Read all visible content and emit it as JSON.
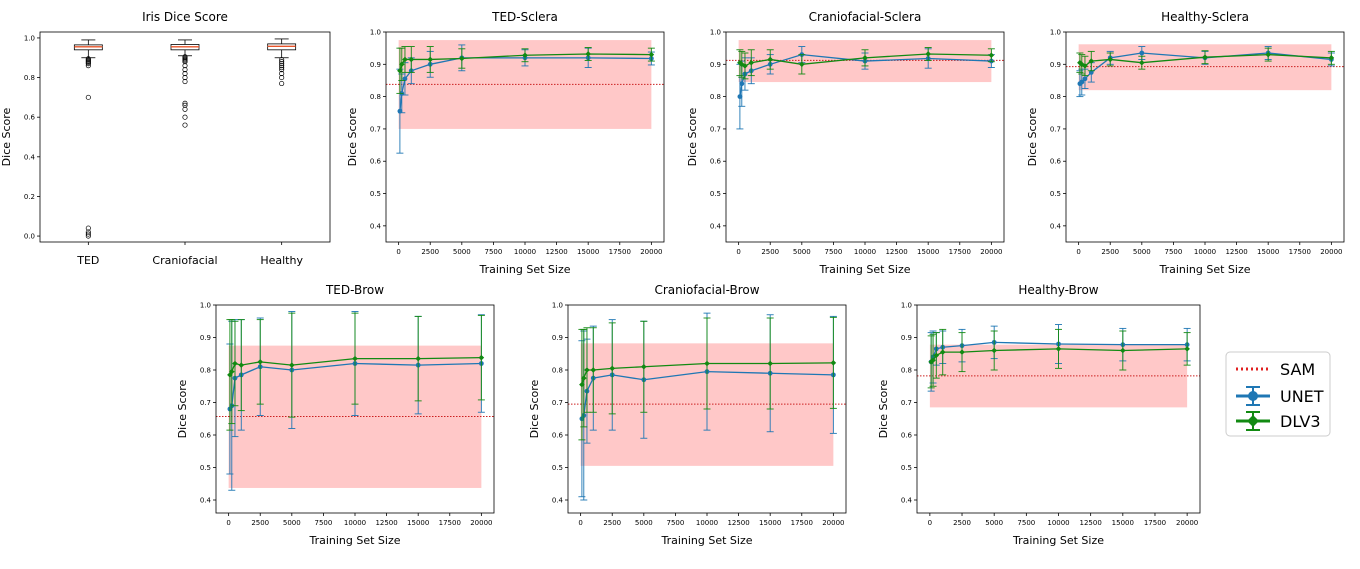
{
  "colors": {
    "unet": "#1f77b4",
    "dlv3": "#128a12",
    "sam": "#cc2020",
    "band": "#ff9a9a"
  },
  "legend": {
    "sam": "SAM",
    "unet": "UNET",
    "dlv3": "DLV3"
  },
  "chart_data": [
    {
      "id": "iris",
      "type": "box",
      "title": "Iris Dice Score",
      "ylabel": "Dice Score",
      "xlabel": "",
      "ylim": [
        -0.03,
        1.03
      ],
      "yticks": [
        "0.0",
        "0.2",
        "0.4",
        "0.6",
        "0.8",
        "1.0"
      ],
      "ytick_values": [
        0.0,
        0.2,
        0.4,
        0.6,
        0.8,
        1.0
      ],
      "categories": [
        "TED",
        "Craniofacial",
        "Healthy"
      ],
      "boxes": [
        {
          "q1": 0.94,
          "median": 0.955,
          "q3": 0.965,
          "whislo": 0.9,
          "whishi": 0.99,
          "fliers": [
            0.895,
            0.89,
            0.885,
            0.88,
            0.875,
            0.87,
            0.86,
            0.7,
            0.04,
            0.02,
            0.01,
            0.0
          ]
        },
        {
          "q1": 0.94,
          "median": 0.955,
          "q3": 0.967,
          "whislo": 0.91,
          "whishi": 0.99,
          "fliers": [
            0.905,
            0.9,
            0.895,
            0.89,
            0.885,
            0.88,
            0.86,
            0.84,
            0.82,
            0.8,
            0.78,
            0.67,
            0.66,
            0.64,
            0.6,
            0.56
          ]
        },
        {
          "q1": 0.94,
          "median": 0.958,
          "q3": 0.97,
          "whislo": 0.9,
          "whishi": 0.995,
          "fliers": [
            0.89,
            0.88,
            0.87,
            0.86,
            0.85,
            0.84,
            0.82,
            0.8,
            0.77
          ]
        }
      ]
    },
    {
      "id": "ted-sclera",
      "type": "line",
      "title": "TED-Sclera",
      "ylabel": "Dice Score",
      "xlabel": "Training Set Size",
      "ylim": [
        0.35,
        1.0
      ],
      "yticks": [
        "0.4",
        "0.5",
        "0.6",
        "0.7",
        "0.8",
        "0.9",
        "1.0"
      ],
      "ytick_values": [
        0.4,
        0.5,
        0.6,
        0.7,
        0.8,
        0.9,
        1.0
      ],
      "xlim": [
        -1000,
        21000
      ],
      "xticks": [
        "0",
        "2500",
        "5000",
        "7500",
        "10000",
        "12500",
        "15000",
        "17500",
        "20000"
      ],
      "xtick_values": [
        0,
        2500,
        5000,
        7500,
        10000,
        12500,
        15000,
        17500,
        20000
      ],
      "x": [
        100,
        250,
        500,
        1000,
        2500,
        5000,
        10000,
        15000,
        20000
      ],
      "sam": {
        "mean": 0.838,
        "band_low": 0.7,
        "band_high": 0.975,
        "band_xmin": 0,
        "band_xmax": 20000
      },
      "series": [
        {
          "name": "UNET",
          "values": [
            0.755,
            0.81,
            0.855,
            0.88,
            0.9,
            0.92,
            0.92,
            0.92,
            0.918
          ],
          "err": [
            0.13,
            0.06,
            0.05,
            0.04,
            0.04,
            0.04,
            0.025,
            0.03,
            0.02
          ]
        },
        {
          "name": "DLV3",
          "values": [
            0.88,
            0.9,
            0.915,
            0.915,
            0.915,
            0.918,
            0.928,
            0.932,
            0.93
          ],
          "err": [
            0.07,
            0.05,
            0.04,
            0.04,
            0.04,
            0.03,
            0.02,
            0.02,
            0.02
          ]
        }
      ]
    },
    {
      "id": "cranio-sclera",
      "type": "line",
      "title": "Craniofacial-Sclera",
      "ylabel": "Dice Score",
      "xlabel": "Training Set Size",
      "ylim": [
        0.35,
        1.0
      ],
      "yticks": [
        "0.4",
        "0.5",
        "0.6",
        "0.7",
        "0.8",
        "0.9",
        "1.0"
      ],
      "ytick_values": [
        0.4,
        0.5,
        0.6,
        0.7,
        0.8,
        0.9,
        1.0
      ],
      "xlim": [
        -1000,
        21000
      ],
      "xticks": [
        "0",
        "2500",
        "5000",
        "7500",
        "10000",
        "12500",
        "15000",
        "17500",
        "20000"
      ],
      "xtick_values": [
        0,
        2500,
        5000,
        7500,
        10000,
        12500,
        15000,
        17500,
        20000
      ],
      "x": [
        100,
        250,
        500,
        1000,
        2500,
        5000,
        10000,
        15000,
        20000
      ],
      "sam": {
        "mean": 0.912,
        "band_low": 0.845,
        "band_high": 0.975,
        "band_xmin": 0,
        "band_xmax": 20000
      },
      "series": [
        {
          "name": "UNET",
          "values": [
            0.8,
            0.84,
            0.87,
            0.88,
            0.9,
            0.93,
            0.91,
            0.918,
            0.91
          ],
          "err": [
            0.1,
            0.07,
            0.05,
            0.04,
            0.03,
            0.025,
            0.025,
            0.03,
            0.02
          ]
        },
        {
          "name": "DLV3",
          "values": [
            0.905,
            0.9,
            0.895,
            0.905,
            0.915,
            0.9,
            0.92,
            0.932,
            0.928
          ],
          "err": [
            0.04,
            0.04,
            0.04,
            0.04,
            0.03,
            0.03,
            0.025,
            0.02,
            0.02
          ]
        }
      ]
    },
    {
      "id": "healthy-sclera",
      "type": "line",
      "title": "Healthy-Sclera",
      "ylabel": "Dice Score",
      "xlabel": "Training Set Size",
      "ylim": [
        0.35,
        1.0
      ],
      "yticks": [
        "0.4",
        "0.5",
        "0.6",
        "0.7",
        "0.8",
        "0.9",
        "1.0"
      ],
      "ytick_values": [
        0.4,
        0.5,
        0.6,
        0.7,
        0.8,
        0.9,
        1.0
      ],
      "xlim": [
        -1000,
        21000
      ],
      "xticks": [
        "0",
        "2500",
        "5000",
        "7500",
        "10000",
        "12500",
        "15000",
        "17500",
        "20000"
      ],
      "xtick_values": [
        0,
        2500,
        5000,
        7500,
        10000,
        12500,
        15000,
        17500,
        20000
      ],
      "x": [
        100,
        250,
        500,
        1000,
        2500,
        5000,
        10000,
        15000,
        20000
      ],
      "sam": {
        "mean": 0.893,
        "band_low": 0.82,
        "band_high": 0.962,
        "band_xmin": 0,
        "band_xmax": 20000
      },
      "series": [
        {
          "name": "UNET",
          "values": [
            0.84,
            0.845,
            0.855,
            0.875,
            0.92,
            0.935,
            0.92,
            0.935,
            0.915
          ],
          "err": [
            0.04,
            0.04,
            0.03,
            0.03,
            0.02,
            0.02,
            0.02,
            0.02,
            0.02
          ]
        },
        {
          "name": "DLV3",
          "values": [
            0.905,
            0.9,
            0.895,
            0.91,
            0.915,
            0.905,
            0.922,
            0.93,
            0.92
          ],
          "err": [
            0.03,
            0.03,
            0.03,
            0.03,
            0.02,
            0.02,
            0.02,
            0.02,
            0.02
          ]
        }
      ]
    },
    {
      "id": "ted-brow",
      "type": "line",
      "title": "TED-Brow",
      "ylabel": "Dice Score",
      "xlabel": "Training Set Size",
      "ylim": [
        0.36,
        1.0
      ],
      "yticks": [
        "0.4",
        "0.5",
        "0.6",
        "0.7",
        "0.8",
        "0.9",
        "1.0"
      ],
      "ytick_values": [
        0.4,
        0.5,
        0.6,
        0.7,
        0.8,
        0.9,
        1.0
      ],
      "xlim": [
        -1000,
        21000
      ],
      "xticks": [
        "0",
        "2500",
        "5000",
        "7500",
        "10000",
        "12500",
        "15000",
        "17500",
        "20000"
      ],
      "xtick_values": [
        0,
        2500,
        5000,
        7500,
        10000,
        12500,
        15000,
        17500,
        20000
      ],
      "x": [
        100,
        250,
        500,
        1000,
        2500,
        5000,
        10000,
        15000,
        20000
      ],
      "sam": {
        "mean": 0.657,
        "band_low": 0.437,
        "band_high": 0.875,
        "band_xmin": 0,
        "band_xmax": 20000
      },
      "series": [
        {
          "name": "UNET",
          "values": [
            0.68,
            0.69,
            0.775,
            0.785,
            0.81,
            0.8,
            0.82,
            0.815,
            0.82
          ],
          "err": [
            0.2,
            0.26,
            0.18,
            0.17,
            0.15,
            0.18,
            0.16,
            0.15,
            0.15
          ]
        },
        {
          "name": "DLV3",
          "values": [
            0.785,
            0.795,
            0.82,
            0.815,
            0.825,
            0.815,
            0.835,
            0.835,
            0.838
          ],
          "err": [
            0.17,
            0.16,
            0.13,
            0.14,
            0.13,
            0.16,
            0.14,
            0.13,
            0.13
          ]
        }
      ]
    },
    {
      "id": "cranio-brow",
      "type": "line",
      "title": "Craniofacial-Brow",
      "ylabel": "Dice Score",
      "xlabel": "Training Set Size",
      "ylim": [
        0.36,
        1.0
      ],
      "yticks": [
        "0.4",
        "0.5",
        "0.6",
        "0.7",
        "0.8",
        "0.9",
        "1.0"
      ],
      "ytick_values": [
        0.4,
        0.5,
        0.6,
        0.7,
        0.8,
        0.9,
        1.0
      ],
      "xlim": [
        -1000,
        21000
      ],
      "xticks": [
        "0",
        "2500",
        "5000",
        "7500",
        "10000",
        "12500",
        "15000",
        "17500",
        "20000"
      ],
      "xtick_values": [
        0,
        2500,
        5000,
        7500,
        10000,
        12500,
        15000,
        17500,
        20000
      ],
      "x": [
        100,
        250,
        500,
        1000,
        2500,
        5000,
        10000,
        15000,
        20000
      ],
      "sam": {
        "mean": 0.695,
        "band_low": 0.505,
        "band_high": 0.882,
        "band_xmin": 0,
        "band_xmax": 20000
      },
      "series": [
        {
          "name": "UNET",
          "values": [
            0.65,
            0.66,
            0.735,
            0.775,
            0.785,
            0.77,
            0.795,
            0.79,
            0.785
          ],
          "err": [
            0.24,
            0.26,
            0.16,
            0.16,
            0.17,
            0.18,
            0.18,
            0.18,
            0.18
          ]
        },
        {
          "name": "DLV3",
          "values": [
            0.755,
            0.775,
            0.8,
            0.8,
            0.805,
            0.81,
            0.82,
            0.82,
            0.822
          ],
          "err": [
            0.17,
            0.15,
            0.13,
            0.13,
            0.14,
            0.14,
            0.14,
            0.14,
            0.14
          ]
        }
      ]
    },
    {
      "id": "healthy-brow",
      "type": "line",
      "title": "Healthy-Brow",
      "ylabel": "Dice Score",
      "xlabel": "Training Set Size",
      "ylim": [
        0.36,
        1.0
      ],
      "yticks": [
        "0.4",
        "0.5",
        "0.6",
        "0.7",
        "0.8",
        "0.9",
        "1.0"
      ],
      "ytick_values": [
        0.4,
        0.5,
        0.6,
        0.7,
        0.8,
        0.9,
        1.0
      ],
      "xlim": [
        -1000,
        21000
      ],
      "xticks": [
        "0",
        "2500",
        "5000",
        "7500",
        "10000",
        "12500",
        "15000",
        "17500",
        "20000"
      ],
      "xtick_values": [
        0,
        2500,
        5000,
        7500,
        10000,
        12500,
        15000,
        17500,
        20000
      ],
      "x": [
        100,
        250,
        500,
        1000,
        2500,
        5000,
        10000,
        15000,
        20000
      ],
      "sam": {
        "mean": 0.782,
        "band_low": 0.685,
        "band_high": 0.878,
        "band_xmin": 0,
        "band_xmax": 20000
      },
      "series": [
        {
          "name": "UNET",
          "values": [
            0.825,
            0.84,
            0.865,
            0.87,
            0.875,
            0.885,
            0.88,
            0.878,
            0.878
          ],
          "err": [
            0.09,
            0.08,
            0.05,
            0.05,
            0.05,
            0.05,
            0.06,
            0.05,
            0.05
          ]
        },
        {
          "name": "DLV3",
          "values": [
            0.825,
            0.83,
            0.845,
            0.855,
            0.855,
            0.86,
            0.865,
            0.86,
            0.865
          ],
          "err": [
            0.08,
            0.08,
            0.07,
            0.07,
            0.06,
            0.06,
            0.06,
            0.06,
            0.05
          ]
        }
      ]
    }
  ]
}
